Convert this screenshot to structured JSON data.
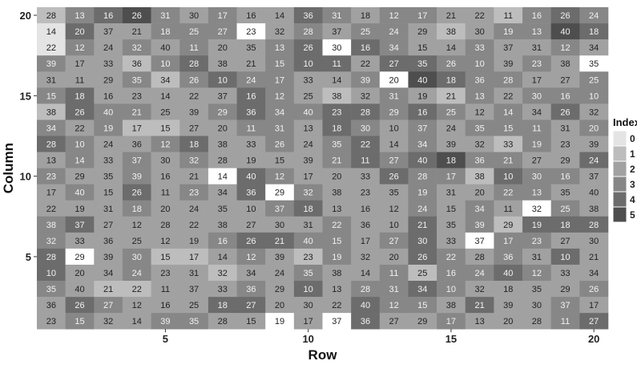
{
  "chart_data": {
    "type": "heatmap",
    "xlabel": "Row",
    "ylabel": "Column",
    "x_ticks": [
      "5",
      "10",
      "15",
      "20"
    ],
    "y_ticks": [
      "5",
      "10",
      "15",
      "20"
    ],
    "xlim": [
      1,
      20
    ],
    "ylim": [
      1,
      20
    ],
    "legend": {
      "title": "Index",
      "position": "right",
      "levels": [
        "0",
        "1",
        "2",
        "3",
        "4",
        "5"
      ],
      "colors": [
        "#e4e4e4",
        "#bdbdbd",
        "#a1a1a1",
        "#878787",
        "#6c6c6c",
        "#4e4e4e"
      ]
    },
    "highlight_color": "#ffffff",
    "rows": [
      {
        "y": 20,
        "values": [
          28,
          13,
          16,
          26,
          31,
          30,
          17,
          16,
          14,
          36,
          31,
          18,
          12,
          17,
          21,
          22,
          11,
          16,
          26,
          24
        ],
        "index": [
          1,
          3,
          4,
          5,
          3,
          2,
          3,
          2,
          2,
          4,
          3,
          2,
          3,
          3,
          2,
          2,
          1,
          3,
          4,
          3
        ]
      },
      {
        "y": 19,
        "values": [
          14,
          20,
          37,
          21,
          18,
          25,
          27,
          23,
          32,
          28,
          37,
          25,
          24,
          29,
          38,
          30,
          19,
          13,
          40,
          18
        ],
        "index": [
          0,
          4,
          2,
          2,
          3,
          3,
          3,
          -1,
          2,
          3,
          2,
          3,
          3,
          2,
          1,
          2,
          3,
          3,
          5,
          4
        ]
      },
      {
        "y": 18,
        "values": [
          22,
          12,
          24,
          32,
          40,
          11,
          20,
          35,
          13,
          26,
          30,
          16,
          34,
          15,
          14,
          33,
          37,
          31,
          12,
          34
        ],
        "index": [
          0,
          3,
          2,
          3,
          2,
          3,
          2,
          2,
          3,
          4,
          -1,
          4,
          3,
          2,
          2,
          3,
          2,
          2,
          3,
          2
        ]
      },
      {
        "y": 17,
        "values": [
          39,
          17,
          33,
          36,
          10,
          28,
          38,
          21,
          15,
          10,
          11,
          22,
          27,
          35,
          26,
          10,
          39,
          23,
          38,
          35
        ],
        "index": [
          3,
          2,
          2,
          1,
          3,
          4,
          2,
          2,
          3,
          4,
          4,
          2,
          4,
          4,
          3,
          3,
          2,
          3,
          2,
          -1
        ]
      },
      {
        "y": 16,
        "values": [
          31,
          11,
          29,
          35,
          34,
          26,
          10,
          24,
          17,
          33,
          14,
          39,
          20,
          40,
          18,
          36,
          28,
          17,
          27,
          25
        ],
        "index": [
          2,
          2,
          2,
          3,
          1,
          3,
          4,
          3,
          3,
          2,
          2,
          3,
          -1,
          5,
          4,
          3,
          3,
          2,
          2,
          3
        ]
      },
      {
        "y": 15,
        "values": [
          15,
          18,
          16,
          23,
          14,
          22,
          37,
          16,
          12,
          25,
          38,
          32,
          31,
          19,
          21,
          13,
          22,
          30,
          16,
          10
        ],
        "index": [
          3,
          4,
          2,
          2,
          2,
          2,
          2,
          4,
          3,
          2,
          1,
          2,
          3,
          2,
          1,
          3,
          2,
          3,
          3,
          3
        ]
      },
      {
        "y": 14,
        "values": [
          38,
          26,
          40,
          21,
          25,
          39,
          29,
          36,
          34,
          40,
          23,
          28,
          29,
          16,
          25,
          12,
          14,
          34,
          26,
          32
        ],
        "index": [
          1,
          4,
          3,
          3,
          2,
          2,
          3,
          4,
          3,
          3,
          4,
          4,
          3,
          4,
          3,
          2,
          3,
          2,
          4,
          2
        ]
      },
      {
        "y": 13,
        "values": [
          34,
          22,
          19,
          17,
          15,
          27,
          20,
          11,
          31,
          13,
          18,
          30,
          10,
          37,
          24,
          35,
          15,
          11,
          31,
          20
        ],
        "index": [
          3,
          2,
          3,
          1,
          1,
          2,
          2,
          3,
          3,
          2,
          4,
          3,
          2,
          3,
          2,
          3,
          3,
          3,
          2,
          3
        ]
      },
      {
        "y": 12,
        "values": [
          28,
          10,
          24,
          36,
          12,
          18,
          38,
          33,
          26,
          24,
          35,
          22,
          14,
          34,
          39,
          32,
          33,
          19,
          23,
          39
        ],
        "index": [
          4,
          3,
          2,
          2,
          3,
          4,
          2,
          2,
          3,
          2,
          3,
          4,
          2,
          3,
          2,
          2,
          1,
          3,
          2,
          2
        ]
      },
      {
        "y": 11,
        "values": [
          13,
          14,
          33,
          37,
          30,
          32,
          28,
          19,
          15,
          39,
          21,
          11,
          27,
          40,
          18,
          36,
          21,
          27,
          29,
          24
        ],
        "index": [
          2,
          3,
          2,
          3,
          2,
          3,
          2,
          2,
          2,
          2,
          3,
          4,
          3,
          4,
          5,
          3,
          3,
          2,
          2,
          4
        ]
      },
      {
        "y": 10,
        "values": [
          23,
          29,
          35,
          39,
          16,
          21,
          14,
          40,
          12,
          17,
          20,
          33,
          26,
          28,
          17,
          38,
          10,
          30,
          16,
          37
        ],
        "index": [
          3,
          2,
          2,
          3,
          2,
          2,
          -1,
          4,
          3,
          2,
          2,
          2,
          4,
          3,
          3,
          1,
          4,
          3,
          3,
          2
        ]
      },
      {
        "y": 9,
        "values": [
          17,
          40,
          15,
          26,
          11,
          23,
          34,
          36,
          29,
          32,
          38,
          23,
          35,
          19,
          31,
          20,
          22,
          13,
          35,
          40
        ],
        "index": [
          2,
          3,
          2,
          4,
          2,
          3,
          2,
          4,
          -1,
          3,
          2,
          2,
          2,
          3,
          2,
          2,
          3,
          3,
          2,
          2
        ]
      },
      {
        "y": 8,
        "values": [
          22,
          19,
          31,
          18,
          20,
          24,
          35,
          10,
          37,
          18,
          13,
          16,
          12,
          24,
          15,
          34,
          11,
          32,
          25,
          38
        ],
        "index": [
          2,
          2,
          2,
          3,
          2,
          2,
          2,
          2,
          3,
          4,
          2,
          2,
          2,
          3,
          2,
          3,
          2,
          -1,
          3,
          2
        ]
      },
      {
        "y": 7,
        "values": [
          38,
          37,
          27,
          12,
          28,
          22,
          38,
          27,
          30,
          31,
          22,
          36,
          10,
          21,
          35,
          39,
          29,
          19,
          18,
          28
        ],
        "index": [
          3,
          4,
          2,
          2,
          2,
          2,
          2,
          2,
          2,
          2,
          3,
          2,
          2,
          4,
          2,
          3,
          1,
          4,
          4,
          4
        ]
      },
      {
        "y": 6,
        "values": [
          32,
          33,
          36,
          25,
          12,
          19,
          16,
          26,
          21,
          40,
          15,
          17,
          27,
          30,
          33,
          37,
          17,
          23,
          27,
          30
        ],
        "index": [
          3,
          2,
          2,
          2,
          2,
          2,
          3,
          4,
          4,
          3,
          3,
          2,
          3,
          4,
          2,
          -1,
          3,
          3,
          2,
          2
        ]
      },
      {
        "y": 5,
        "values": [
          28,
          29,
          39,
          30,
          15,
          17,
          14,
          12,
          39,
          23,
          19,
          32,
          20,
          26,
          22,
          28,
          36,
          31,
          10,
          21
        ],
        "index": [
          4,
          -1,
          2,
          3,
          1,
          1,
          2,
          3,
          2,
          1,
          3,
          2,
          2,
          4,
          3,
          2,
          3,
          2,
          4,
          2
        ]
      },
      {
        "y": 4,
        "values": [
          10,
          20,
          34,
          24,
          23,
          31,
          32,
          34,
          24,
          35,
          38,
          14,
          11,
          25,
          16,
          24,
          40,
          12,
          33,
          34
        ],
        "index": [
          4,
          2,
          2,
          3,
          2,
          2,
          1,
          2,
          2,
          3,
          2,
          2,
          3,
          1,
          3,
          3,
          4,
          3,
          2,
          2
        ]
      },
      {
        "y": 3,
        "values": [
          35,
          40,
          21,
          22,
          11,
          37,
          33,
          36,
          29,
          10,
          13,
          28,
          31,
          34,
          10,
          32,
          18,
          35,
          29,
          26
        ],
        "index": [
          3,
          2,
          1,
          1,
          2,
          2,
          2,
          3,
          2,
          4,
          2,
          3,
          3,
          4,
          3,
          2,
          2,
          2,
          2,
          3
        ]
      },
      {
        "y": 2,
        "values": [
          36,
          26,
          27,
          12,
          16,
          25,
          18,
          27,
          20,
          30,
          22,
          40,
          12,
          15,
          38,
          21,
          39,
          30,
          37,
          17
        ],
        "index": [
          2,
          4,
          3,
          2,
          2,
          2,
          4,
          4,
          2,
          2,
          2,
          4,
          3,
          3,
          2,
          4,
          2,
          2,
          3,
          2
        ]
      },
      {
        "y": 1,
        "values": [
          23,
          15,
          32,
          14,
          39,
          35,
          28,
          15,
          19,
          17,
          37,
          36,
          27,
          29,
          17,
          13,
          20,
          28,
          11,
          27
        ],
        "index": [
          2,
          3,
          2,
          2,
          3,
          3,
          2,
          2,
          -1,
          2,
          -1,
          4,
          2,
          2,
          3,
          2,
          2,
          2,
          3,
          4
        ]
      }
    ]
  }
}
